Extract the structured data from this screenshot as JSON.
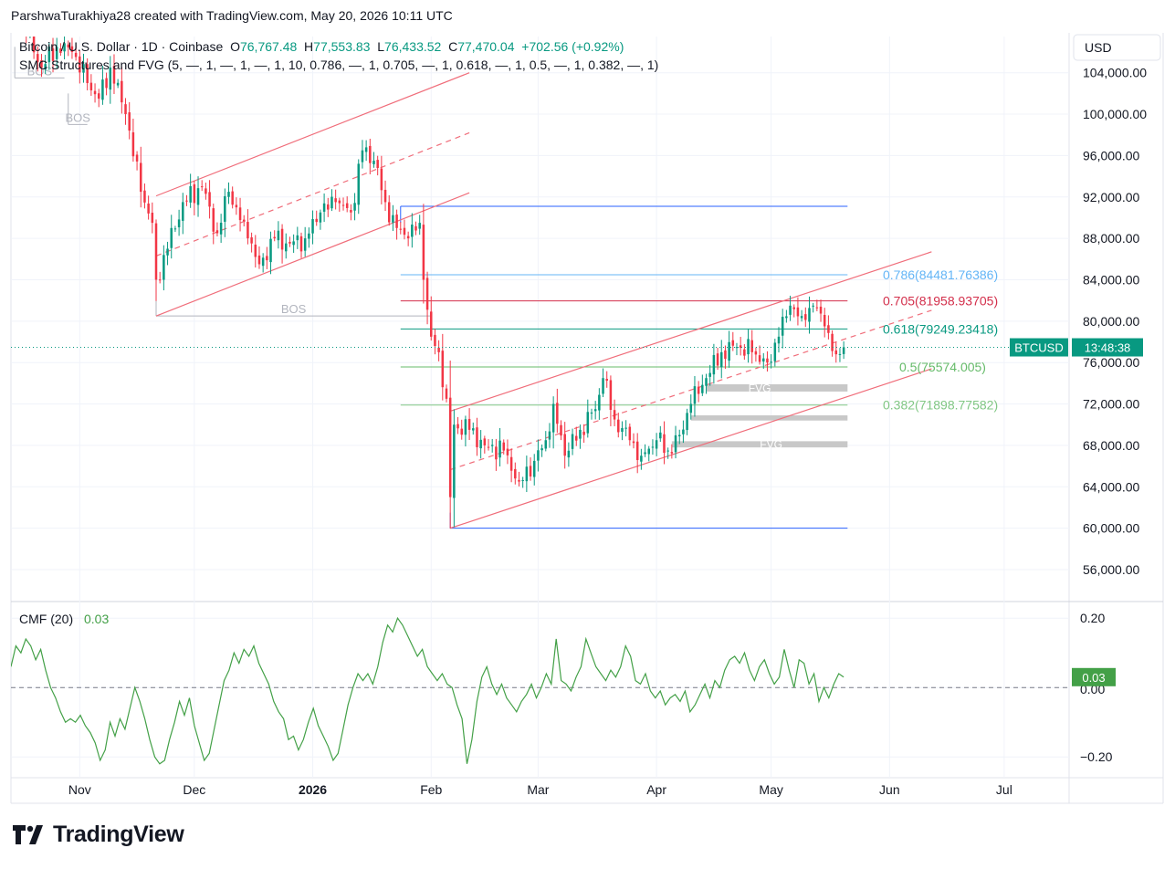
{
  "attribution": "ParshwaTurakhiya28 created with TradingView.com, May 20, 2026 10:11 UTC",
  "brand": "TradingView",
  "colors": {
    "up": "#089981",
    "down": "#f23645",
    "channel": "#f06d7a",
    "cmf": "#43a047",
    "fib_786": "#64b5f6",
    "fib_705": "#d32f4b",
    "fib_618": "#089981",
    "fib_5": "#66bb6a",
    "fib_382": "#81c784",
    "range_line": "#2962ff",
    "fvg": "#c8c8c8",
    "bos": "#b2b5be"
  },
  "header": {
    "symbol": "Bitcoin / U.S. Dollar · 1D · Coinbase",
    "o_label": "O",
    "o_value": "76,767.48",
    "h_label": "H",
    "h_value": "77,553.83",
    "l_label": "L",
    "l_value": "76,433.52",
    "c_label": "C",
    "c_value": "77,470.04",
    "change": "+702.56 (+0.92%)",
    "indicator": "SMC Structures and FVG (5, —, 1, —, 1, —, 1, 10, 0.786, —, 1, 0.705, —, 1, 0.618, —, 1, 0.5, —, 1, 0.382, —, 1)"
  },
  "price_axis": {
    "currency": "USD",
    "ticks": [
      "104,000.00",
      "100,000.00",
      "96,000.00",
      "92,000.00",
      "88,000.00",
      "84,000.00",
      "80,000.00",
      "76,000.00",
      "72,000.00",
      "68,000.00",
      "64,000.00",
      "60,000.00",
      "56,000.00"
    ],
    "last_symbol": "BTCUSD",
    "countdown": "13:48:38"
  },
  "time_axis": {
    "labels": [
      "Nov",
      "Dec",
      "2026",
      "Feb",
      "Mar",
      "Apr",
      "May",
      "Jun",
      "Jul"
    ]
  },
  "fib_labels": [
    {
      "ratio": "0.786",
      "price": "(84481.76386)"
    },
    {
      "ratio": "0.705",
      "price": "(81958.93705)"
    },
    {
      "ratio": "0.618",
      "price": "(79249.23418)"
    },
    {
      "ratio": "0.5",
      "price": "(75574.005)"
    },
    {
      "ratio": "0.382",
      "price": "(71898.77582)"
    }
  ],
  "structure_labels": [
    "BOS",
    "BOS",
    "BOS"
  ],
  "fvg_label": "FVG",
  "cmf": {
    "title": "CMF (20)",
    "value": "0.03",
    "ticks": [
      "0.20",
      "0.00",
      "−0.20"
    ]
  },
  "chart_data": {
    "type": "candlestick",
    "title": "Bitcoin / U.S. Dollar · 1D · Coinbase",
    "ylabel": "USD",
    "ylim": [
      53000,
      107500
    ],
    "x_range": [
      "2025-10-14",
      "2026-07-18"
    ],
    "last_close": 77470.04,
    "anchors": [
      {
        "date": "2025-10-14",
        "close": 112000
      },
      {
        "date": "2025-10-18",
        "close": 108000
      },
      {
        "date": "2025-10-22",
        "close": 104500
      },
      {
        "date": "2025-10-26",
        "close": 106500
      },
      {
        "date": "2025-10-30",
        "close": 106000
      },
      {
        "date": "2025-11-03",
        "close": 103000
      },
      {
        "date": "2025-11-06",
        "close": 101500
      },
      {
        "date": "2025-11-09",
        "close": 104500
      },
      {
        "date": "2025-11-13",
        "close": 100000
      },
      {
        "date": "2025-11-17",
        "close": 92500
      },
      {
        "date": "2025-11-20",
        "close": 89500
      },
      {
        "date": "2025-11-21",
        "close": 84000
      },
      {
        "date": "2025-11-24",
        "close": 87000
      },
      {
        "date": "2025-11-28",
        "close": 91500
      },
      {
        "date": "2025-12-03",
        "close": 93000
      },
      {
        "date": "2025-12-07",
        "close": 88500
      },
      {
        "date": "2025-12-10",
        "close": 92500
      },
      {
        "date": "2025-12-15",
        "close": 88000
      },
      {
        "date": "2025-12-18",
        "close": 85500
      },
      {
        "date": "2025-12-22",
        "close": 88000
      },
      {
        "date": "2025-12-26",
        "close": 87500
      },
      {
        "date": "2025-12-30",
        "close": 88000
      },
      {
        "date": "2026-01-03",
        "close": 90500
      },
      {
        "date": "2026-01-07",
        "close": 91500
      },
      {
        "date": "2026-01-11",
        "close": 90500
      },
      {
        "date": "2026-01-14",
        "close": 96500
      },
      {
        "date": "2026-01-17",
        "close": 95500
      },
      {
        "date": "2026-01-20",
        "close": 91500
      },
      {
        "date": "2026-01-23",
        "close": 89000
      },
      {
        "date": "2026-01-26",
        "close": 88000
      },
      {
        "date": "2026-01-29",
        "close": 89500
      },
      {
        "date": "2026-01-30",
        "close": 84000
      },
      {
        "date": "2026-02-01",
        "close": 78500
      },
      {
        "date": "2026-02-03",
        "close": 77000
      },
      {
        "date": "2026-02-05",
        "close": 72500
      },
      {
        "date": "2026-02-06",
        "close": 63000
      },
      {
        "date": "2026-02-07",
        "close": 70000
      },
      {
        "date": "2026-02-11",
        "close": 69500
      },
      {
        "date": "2026-02-15",
        "close": 68000
      },
      {
        "date": "2026-02-20",
        "close": 67500
      },
      {
        "date": "2026-02-24",
        "close": 64500
      },
      {
        "date": "2026-02-28",
        "close": 66500
      },
      {
        "date": "2026-03-03",
        "close": 68500
      },
      {
        "date": "2026-03-05",
        "close": 72000
      },
      {
        "date": "2026-03-08",
        "close": 67000
      },
      {
        "date": "2026-03-12",
        "close": 69500
      },
      {
        "date": "2026-03-16",
        "close": 71500
      },
      {
        "date": "2026-03-18",
        "close": 74500
      },
      {
        "date": "2026-03-21",
        "close": 70500
      },
      {
        "date": "2026-03-25",
        "close": 68500
      },
      {
        "date": "2026-03-28",
        "close": 67000
      },
      {
        "date": "2026-04-01",
        "close": 68500
      },
      {
        "date": "2026-04-04",
        "close": 67500
      },
      {
        "date": "2026-04-07",
        "close": 69000
      },
      {
        "date": "2026-04-10",
        "close": 72000
      },
      {
        "date": "2026-04-14",
        "close": 74500
      },
      {
        "date": "2026-04-18",
        "close": 77000
      },
      {
        "date": "2026-04-22",
        "close": 77500
      },
      {
        "date": "2026-04-26",
        "close": 77000
      },
      {
        "date": "2026-04-30",
        "close": 76000
      },
      {
        "date": "2026-05-03",
        "close": 78500
      },
      {
        "date": "2026-05-06",
        "close": 81500
      },
      {
        "date": "2026-05-09",
        "close": 80500
      },
      {
        "date": "2026-05-12",
        "close": 81500
      },
      {
        "date": "2026-05-15",
        "close": 79500
      },
      {
        "date": "2026-05-18",
        "close": 76800
      },
      {
        "date": "2026-05-20",
        "close": 77470
      }
    ],
    "fib_levels": [
      {
        "ratio": 0.786,
        "price": 84481.76386
      },
      {
        "ratio": 0.705,
        "price": 81958.93705
      },
      {
        "ratio": 0.618,
        "price": 79249.23418
      },
      {
        "ratio": 0.5,
        "price": 75574.005
      },
      {
        "ratio": 0.382,
        "price": 71898.77582
      }
    ],
    "range_high": 91100,
    "range_low": 60000,
    "fvg_zones": [
      {
        "from": "2026-04-14",
        "low": 73200,
        "high": 73900
      },
      {
        "from": "2026-04-10",
        "low": 70400,
        "high": 70900
      },
      {
        "from": "2026-04-05",
        "low": 67800,
        "high": 68400
      }
    ],
    "bos_levels": [
      {
        "from": "2025-10-15",
        "to": "2025-10-28",
        "price": 103500
      },
      {
        "from": "2025-10-29",
        "to": "2025-11-03",
        "price": 99000
      },
      {
        "from": "2025-11-21",
        "to": "2026-02-01",
        "price": 80500
      }
    ],
    "channels": [
      {
        "start_date": "2025-11-21",
        "end_date": "2026-02-11",
        "lower_start": 80500,
        "lower_end": 92400,
        "width": 11600
      },
      {
        "start_date": "2026-02-06",
        "end_date": "2026-06-12",
        "lower_start": 60000,
        "lower_end": 75400,
        "width": 11300
      }
    ],
    "cmf": {
      "name": "CMF (20)",
      "ylim": [
        -0.26,
        0.24
      ],
      "last": 0.03,
      "values": [
        0.06,
        0.12,
        0.1,
        0.14,
        0.12,
        0.08,
        0.11,
        0.05,
        0.0,
        -0.03,
        -0.07,
        -0.1,
        -0.09,
        -0.1,
        -0.08,
        -0.11,
        -0.13,
        -0.16,
        -0.21,
        -0.18,
        -0.1,
        -0.14,
        -0.09,
        -0.12,
        -0.06,
        0.0,
        -0.04,
        -0.09,
        -0.15,
        -0.2,
        -0.22,
        -0.21,
        -0.15,
        -0.1,
        -0.04,
        -0.08,
        -0.03,
        -0.11,
        -0.16,
        -0.21,
        -0.19,
        -0.12,
        -0.05,
        0.02,
        0.05,
        0.1,
        0.07,
        0.11,
        0.09,
        0.12,
        0.07,
        0.04,
        0.01,
        -0.04,
        -0.07,
        -0.09,
        -0.15,
        -0.14,
        -0.18,
        -0.15,
        -0.1,
        -0.06,
        -0.11,
        -0.14,
        -0.17,
        -0.21,
        -0.19,
        -0.12,
        -0.05,
        0.0,
        0.04,
        0.02,
        0.04,
        0.01,
        0.06,
        0.13,
        0.18,
        0.16,
        0.2,
        0.18,
        0.15,
        0.12,
        0.09,
        0.11,
        0.06,
        0.04,
        0.02,
        0.04,
        0.01,
        0.0,
        -0.05,
        -0.09,
        -0.22,
        -0.15,
        -0.04,
        0.03,
        0.06,
        0.01,
        -0.02,
        0.01,
        -0.03,
        -0.05,
        -0.07,
        -0.04,
        -0.02,
        0.01,
        -0.03,
        0.0,
        0.04,
        0.01,
        0.14,
        0.02,
        0.01,
        -0.01,
        0.03,
        0.06,
        0.14,
        0.1,
        0.06,
        0.04,
        0.02,
        0.05,
        0.03,
        0.06,
        0.12,
        0.09,
        0.02,
        0.01,
        0.04,
        -0.01,
        -0.03,
        -0.01,
        -0.05,
        -0.03,
        -0.02,
        -0.04,
        -0.01,
        -0.07,
        -0.05,
        -0.02,
        0.01,
        -0.03,
        0.02,
        0.0,
        0.05,
        0.08,
        0.09,
        0.07,
        0.1,
        0.05,
        0.02,
        0.06,
        0.08,
        0.04,
        0.01,
        0.03,
        0.11,
        0.05,
        0.0,
        0.08,
        0.07,
        0.01,
        0.04,
        -0.04,
        0.0,
        -0.03,
        0.01,
        0.04,
        0.03
      ]
    }
  }
}
